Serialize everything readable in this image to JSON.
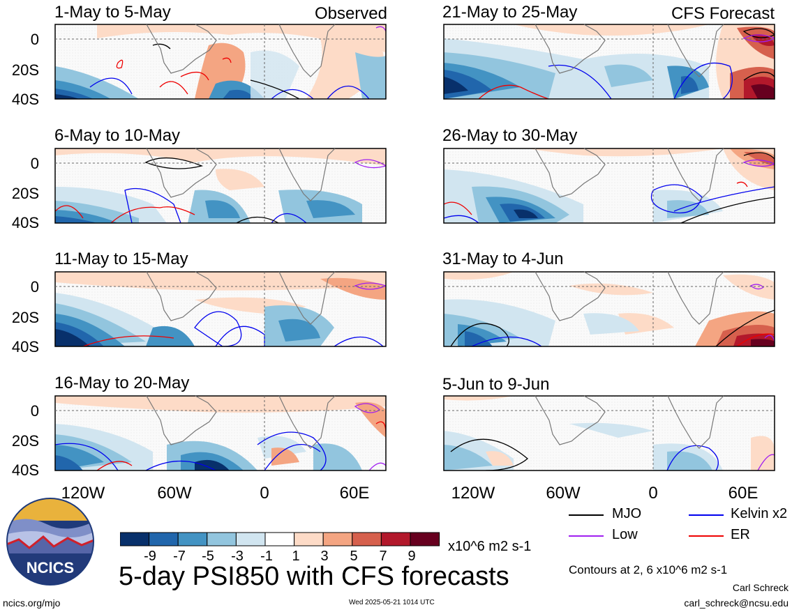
{
  "header": {
    "observed_label": "Observed",
    "forecast_label": "CFS Forecast"
  },
  "panels": [
    {
      "title": "1-May to 5-May"
    },
    {
      "title": "6-May to 10-May"
    },
    {
      "title": "11-May to 15-May"
    },
    {
      "title": "16-May to 20-May"
    },
    {
      "title": "21-May to 25-May"
    },
    {
      "title": "26-May to 30-May"
    },
    {
      "title": "31-May to 4-Jun"
    },
    {
      "title": "5-Jun to 9-Jun"
    }
  ],
  "axes": {
    "y_ticks": [
      "0",
      "20S",
      "40S"
    ],
    "x_ticks": [
      "120W",
      "60W",
      "0",
      "60E"
    ]
  },
  "colorbar": {
    "labels": [
      "-9",
      "-7",
      "-5",
      "-3",
      "-1",
      "1",
      "3",
      "5",
      "7",
      "9"
    ],
    "units": "x10^6 m2 s-1",
    "colors": [
      "#08306b",
      "#2166ac",
      "#4393c3",
      "#92c5de",
      "#d1e5f0",
      "#ffffff",
      "#fddbc7",
      "#f4a582",
      "#d6604d",
      "#b2182b",
      "#67001f"
    ]
  },
  "legend": {
    "items": [
      {
        "label": "MJO",
        "color": "#000000"
      },
      {
        "label": "Kelvin x2",
        "color": "#0000ee"
      },
      {
        "label": "Low",
        "color": "#a020f0"
      },
      {
        "label": "ER",
        "color": "#ee0000"
      }
    ],
    "contours_note": "Contours at 2, 6 x10^6 m2 s-1"
  },
  "main_title": "5-day PSI850 with CFS forecasts",
  "logo_text": "NCICS",
  "footer": {
    "url": "ncics.org/mjo",
    "timestamp": "Wed 2025-05-21 1014 UTC",
    "author": "Carl Schreck",
    "email": "carl_schreck@ncsu.edu"
  }
}
